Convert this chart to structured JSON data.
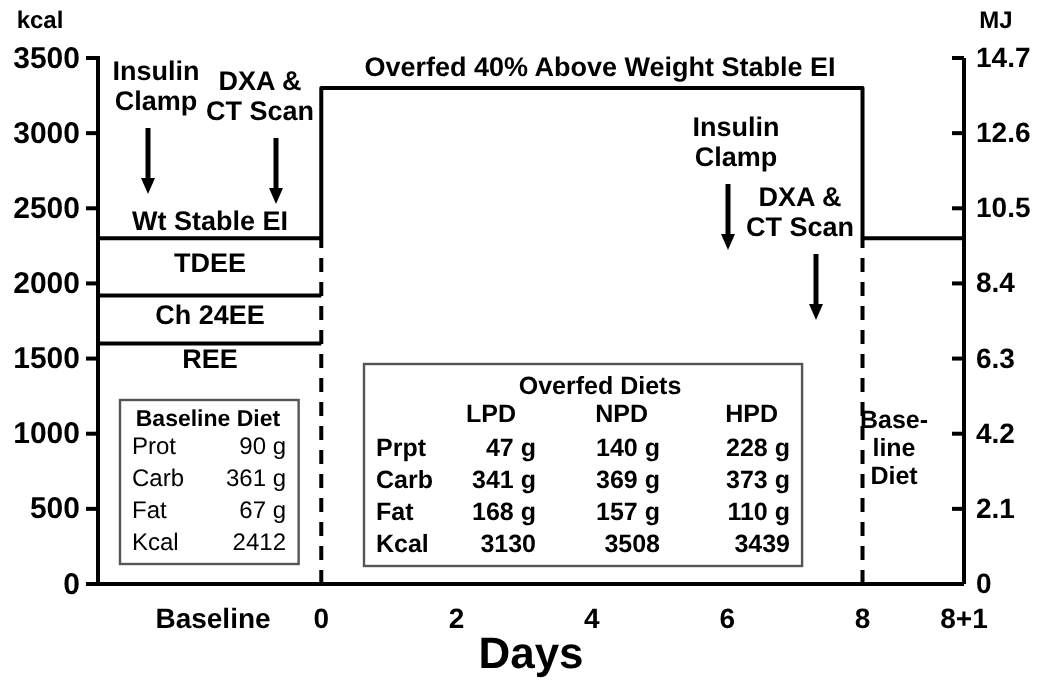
{
  "chart_data": {
    "type": "step",
    "xlabel": "Days",
    "ylabel": "kcal",
    "y2label": "MJ",
    "xlim": [
      -3.3,
      9.5
    ],
    "xticks": [
      {
        "value": -1.6,
        "label": "Baseline"
      },
      0,
      2,
      4,
      6,
      8,
      {
        "value": 9.5,
        "label": "8+1"
      }
    ],
    "ylim": [
      0,
      3500
    ],
    "yticks": [
      0,
      500,
      1000,
      1500,
      2000,
      2500,
      3000,
      3500
    ],
    "y2lim": [
      0,
      14.7
    ],
    "y2ticks": [
      0,
      2.1,
      4.2,
      6.3,
      8.4,
      10.5,
      12.6,
      14.7
    ],
    "series": [
      {
        "color": "#000000",
        "x": [
          -3.3,
          0,
          8,
          9.5
        ],
        "values": [
          2300,
          3300,
          2300,
          2300
        ]
      },
      {
        "type": "line",
        "color": "#000000",
        "x": [
          -3.3,
          0
        ],
        "values": [
          1920,
          1920
        ]
      },
      {
        "type": "line",
        "color": "#000000",
        "x": [
          -3.3,
          0
        ],
        "values": [
          1600,
          1600
        ]
      },
      {
        "type": "line",
        "color": "#000000",
        "line_style": "dashed",
        "x": [
          0,
          0
        ],
        "values": [
          0,
          2300
        ]
      },
      {
        "type": "line",
        "color": "#000000",
        "line_style": "dashed",
        "x": [
          8,
          8
        ],
        "values": [
          0,
          2300
        ]
      }
    ],
    "annotations": [
      "Insulin\nClamp",
      "DXA &\nCT Scan",
      "Insulin\nClamp",
      "DXA &\nCT Scan",
      "Overfed 40% Above Weight Stable EI",
      "Wt Stable EI",
      "TDEE",
      "Ch 24EE",
      "REE",
      "Base-\nline\nDiet",
      "Baseline Diet",
      "Prot",
      "90 g",
      "Carb",
      "361 g",
      "Fat",
      "67 g",
      "Kcal",
      "2412",
      "Overfed Diets",
      "LPD",
      "NPD",
      "HPD",
      "Prpt",
      "47 g",
      "140 g",
      "228 g",
      "Carb",
      "341 g",
      "369 g",
      "373 g",
      "Fat",
      "168 g",
      "157 g",
      "110 g",
      "Kcal",
      "3130",
      "3508",
      "3439"
    ]
  }
}
